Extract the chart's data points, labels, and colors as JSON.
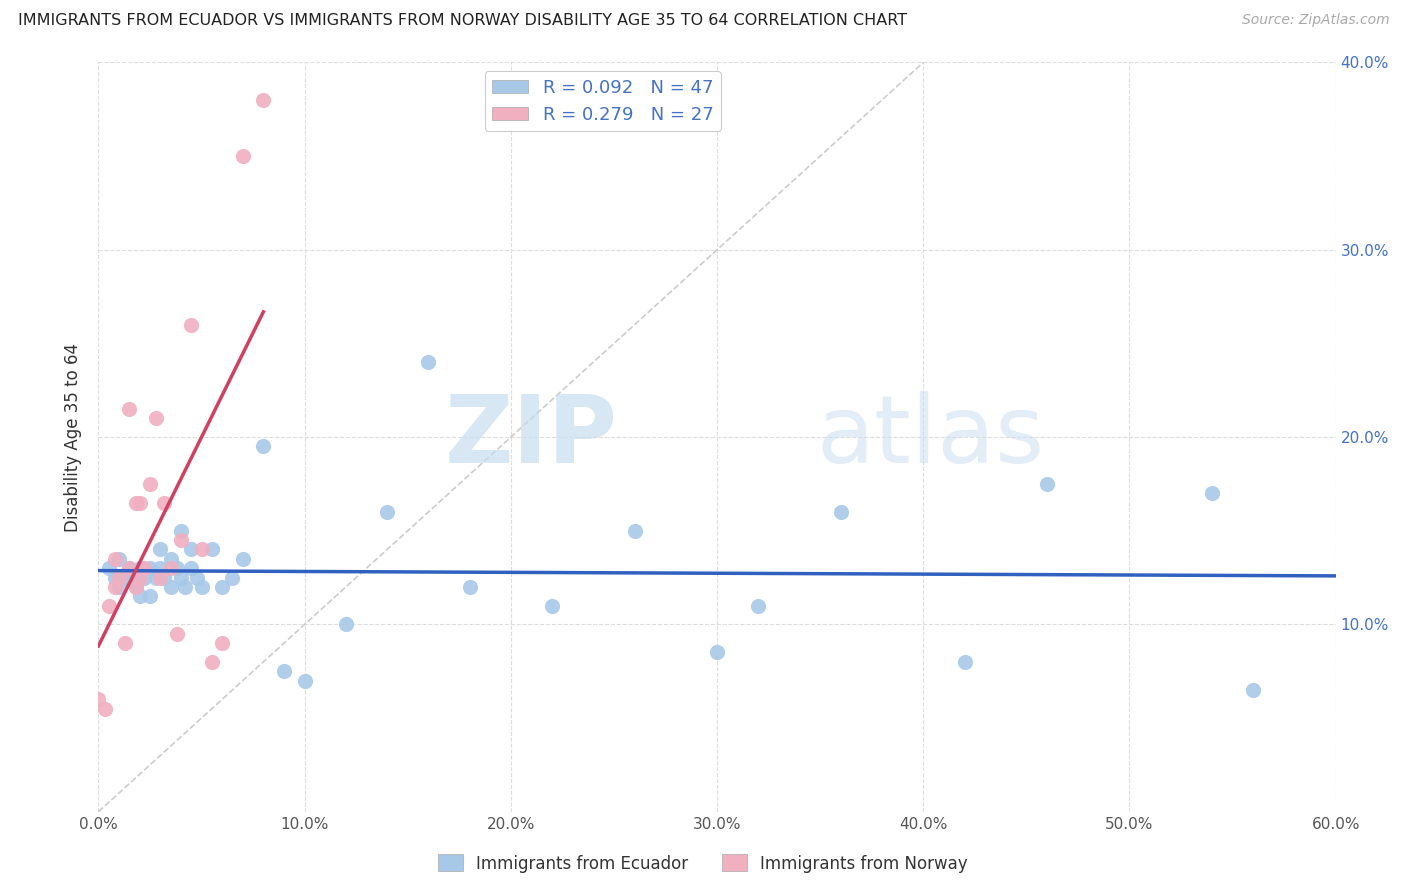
{
  "title": "IMMIGRANTS FROM ECUADOR VS IMMIGRANTS FROM NORWAY DISABILITY AGE 35 TO 64 CORRELATION CHART",
  "source": "Source: ZipAtlas.com",
  "ylabel": "Disability Age 35 to 64",
  "xlim": [
    0.0,
    0.6
  ],
  "ylim": [
    0.0,
    0.4
  ],
  "xticks": [
    0.0,
    0.1,
    0.2,
    0.3,
    0.4,
    0.5,
    0.6
  ],
  "yticks": [
    0.0,
    0.1,
    0.2,
    0.3,
    0.4
  ],
  "xticklabels": [
    "0.0%",
    "10.0%",
    "20.0%",
    "30.0%",
    "40.0%",
    "50.0%",
    "60.0%"
  ],
  "yticklabels_left": [
    "",
    "",
    "",
    "",
    ""
  ],
  "yticklabels_right": [
    "",
    "10.0%",
    "20.0%",
    "30.0%",
    "40.0%"
  ],
  "ecuador_R": 0.092,
  "ecuador_N": 47,
  "norway_R": 0.279,
  "norway_N": 27,
  "ecuador_color": "#a8c8e8",
  "norway_color": "#f0b0c0",
  "ecuador_line_color": "#3060c0",
  "norway_line_color": "#d04060",
  "diagonal_color": "#cccccc",
  "watermark_zip": "ZIP",
  "watermark_atlas": "atlas",
  "ecuador_x": [
    0.005,
    0.008,
    0.01,
    0.01,
    0.012,
    0.015,
    0.015,
    0.018,
    0.02,
    0.02,
    0.022,
    0.025,
    0.025,
    0.028,
    0.03,
    0.03,
    0.032,
    0.035,
    0.035,
    0.038,
    0.04,
    0.04,
    0.042,
    0.045,
    0.045,
    0.048,
    0.05,
    0.055,
    0.06,
    0.065,
    0.07,
    0.08,
    0.09,
    0.1,
    0.12,
    0.14,
    0.16,
    0.18,
    0.22,
    0.26,
    0.3,
    0.32,
    0.36,
    0.42,
    0.46,
    0.54,
    0.56
  ],
  "ecuador_y": [
    0.13,
    0.125,
    0.12,
    0.135,
    0.125,
    0.125,
    0.13,
    0.12,
    0.115,
    0.13,
    0.125,
    0.115,
    0.13,
    0.125,
    0.13,
    0.14,
    0.125,
    0.12,
    0.135,
    0.13,
    0.125,
    0.15,
    0.12,
    0.13,
    0.14,
    0.125,
    0.12,
    0.14,
    0.12,
    0.125,
    0.135,
    0.195,
    0.075,
    0.07,
    0.1,
    0.16,
    0.24,
    0.12,
    0.11,
    0.15,
    0.085,
    0.11,
    0.16,
    0.08,
    0.175,
    0.17,
    0.065
  ],
  "norway_x": [
    0.0,
    0.003,
    0.005,
    0.008,
    0.008,
    0.01,
    0.013,
    0.015,
    0.015,
    0.018,
    0.018,
    0.02,
    0.02,
    0.022,
    0.025,
    0.028,
    0.03,
    0.032,
    0.035,
    0.038,
    0.04,
    0.045,
    0.05,
    0.055,
    0.06,
    0.07,
    0.08
  ],
  "norway_y": [
    0.06,
    0.055,
    0.11,
    0.12,
    0.135,
    0.125,
    0.09,
    0.13,
    0.215,
    0.12,
    0.165,
    0.125,
    0.165,
    0.13,
    0.175,
    0.21,
    0.125,
    0.165,
    0.13,
    0.095,
    0.145,
    0.26,
    0.14,
    0.08,
    0.09,
    0.35,
    0.38
  ]
}
